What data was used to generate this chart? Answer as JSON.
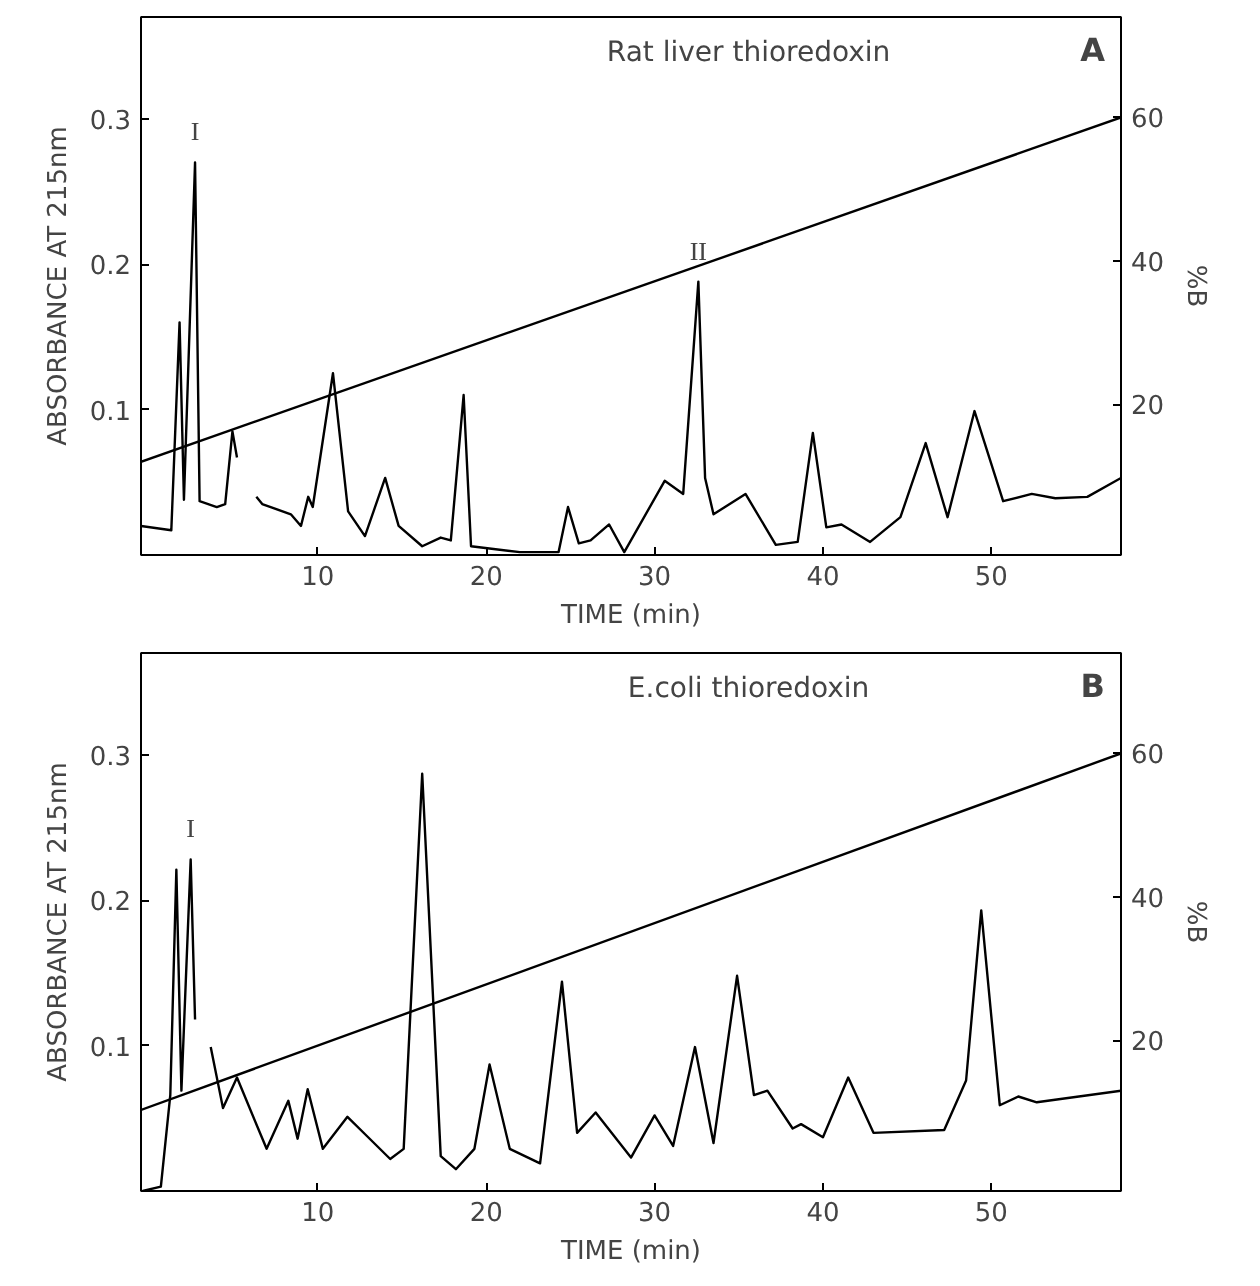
{
  "chart_data": [
    {
      "type": "line",
      "title": "Rat liver thioredoxin",
      "xlabel": "TIME (min)",
      "ylabel": "ABSORBANCE AT 215nm",
      "y2label": "%B",
      "xlim": [
        -0.5,
        57.7
      ],
      "ylim": [
        0,
        0.37
      ],
      "y2lim": [
        -1,
        74
      ],
      "xticks": [
        10,
        20,
        30,
        40,
        50
      ],
      "yticks": [
        0.1,
        0.2,
        0.3
      ],
      "y2ticks": [
        20,
        40,
        60
      ],
      "grid": false,
      "annotations": [
        "A",
        {
          "text": "I",
          "x": 2.71,
          "y": 0.27
        },
        {
          "text": "II",
          "x": 32.6,
          "y": 0.188
        }
      ],
      "series": [
        {
          "color": "#000000",
          "x": [
            -0.5,
            1.3,
            1.79,
            2.05,
            2.71,
            2.98,
            4.0,
            4.5,
            4.93,
            5.2,
            5.5,
            6.1,
            6.35,
            6.7,
            8.4,
            9.0,
            9.43,
            9.7,
            10.9,
            11.8,
            12.8,
            14.0,
            14.8,
            16.2,
            17.3,
            17.9,
            18.66,
            19.1,
            22,
            24.3,
            24.86,
            25.5,
            26.2,
            27.3,
            28.2,
            30.6,
            31.7,
            32.6,
            33.0,
            33.5,
            35.4,
            37.2,
            38.5,
            39.4,
            40.2,
            41.1,
            42.8,
            44.6,
            46.1,
            47.4,
            49.0,
            50.7,
            52.4,
            53.8,
            55.7,
            57.7
          ],
          "values": [
            0.02,
            0.017,
            0.16,
            0.038,
            0.27,
            0.037,
            0.033,
            0.035,
            0.085,
            0.067,
            null,
            null,
            0.04,
            0.035,
            0.028,
            0.02,
            0.04,
            0.033,
            0.125,
            0.03,
            0.013,
            0.053,
            0.02,
            0.006,
            0.012,
            0.01,
            0.11,
            0.006,
            0.002,
            0.002,
            0.033,
            0.008,
            0.01,
            0.021,
            0.002,
            0.051,
            0.042,
            0.188,
            0.053,
            0.028,
            0.042,
            0.007,
            0.009,
            0.084,
            0.019,
            0.021,
            0.009,
            0.026,
            0.077,
            0.026,
            0.099,
            0.037,
            0.042,
            0.039,
            0.04,
            0.053
          ]
        },
        {
          "color": "#000000",
          "axis": "y2",
          "x": [
            -0.5,
            57.7
          ],
          "values": [
            12,
            60
          ]
        }
      ]
    },
    {
      "type": "line",
      "title": "E.coli thioredoxin",
      "xlabel": "TIME (min)",
      "ylabel": "ABSORBANCE AT 215nm",
      "y2label": "%B",
      "xlim": [
        -0.5,
        57.7
      ],
      "ylim": [
        0,
        0.37
      ],
      "y2lim": [
        -1,
        74
      ],
      "xticks": [
        10,
        20,
        30,
        40,
        50
      ],
      "yticks": [
        0.1,
        0.2,
        0.3
      ],
      "y2ticks": [
        20,
        40,
        60
      ],
      "grid": false,
      "annotations": [
        "B",
        {
          "text": "I",
          "x": 2.45,
          "y": 0.228
        }
      ],
      "series": [
        {
          "color": "#000000",
          "x": [
            -0.4,
            0.68,
            1.24,
            1.6,
            1.9,
            2.45,
            2.71,
            3.1,
            3.45,
            3.64,
            4.37,
            5.2,
            6.96,
            8.25,
            8.8,
            9.4,
            10.3,
            11.76,
            12.9,
            14.3,
            15.1,
            16.2,
            17.3,
            18.2,
            19.3,
            20.2,
            21.4,
            23.2,
            24.5,
            25.4,
            26.5,
            28.6,
            30.0,
            31.1,
            32.4,
            33.5,
            34.9,
            35.9,
            36.7,
            38.2,
            38.7,
            40.0,
            41.5,
            43.0,
            47.2,
            48.5,
            49.4,
            50.5,
            51.6,
            52.7,
            57.7
          ],
          "values": [
            0,
            0.003,
            0.066,
            0.221,
            0.069,
            0.228,
            0.118,
            null,
            null,
            0.099,
            0.057,
            0.078,
            0.029,
            0.062,
            0.036,
            0.07,
            0.029,
            0.051,
            0.038,
            0.022,
            0.029,
            0.287,
            0.024,
            0.015,
            0.029,
            0.087,
            0.029,
            0.019,
            0.144,
            0.04,
            0.054,
            0.023,
            0.052,
            0.031,
            0.099,
            0.033,
            0.148,
            0.066,
            0.069,
            0.043,
            0.046,
            0.037,
            0.078,
            0.04,
            0.042,
            0.076,
            0.193,
            0.059,
            0.065,
            0.061,
            0.069
          ]
        },
        {
          "color": "#000000",
          "axis": "y2",
          "x": [
            -0.5,
            57.7
          ],
          "values": [
            10.3,
            60
          ]
        }
      ]
    }
  ]
}
